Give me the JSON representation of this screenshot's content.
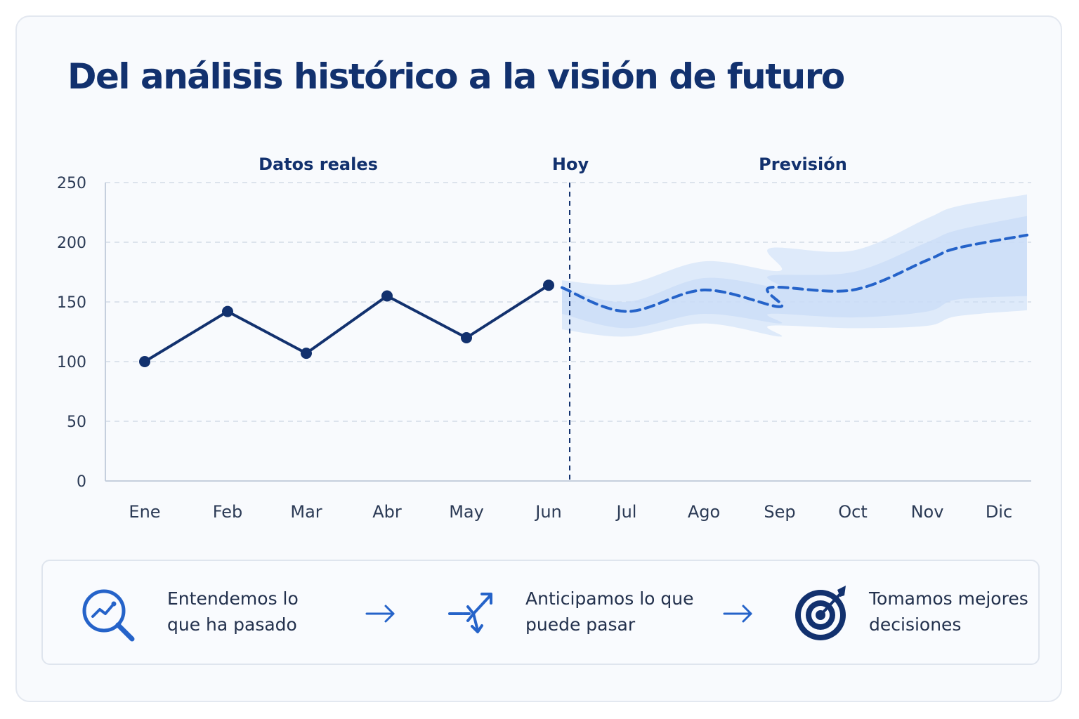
{
  "title": "Del análisis histórico a la visión de futuro",
  "chart_data": {
    "type": "line",
    "categories": [
      "Ene",
      "Feb",
      "Mar",
      "Abr",
      "May",
      "Jun",
      "Jul",
      "Ago",
      "Sep",
      "Oct",
      "Nov",
      "Dic"
    ],
    "ylim": [
      0,
      250
    ],
    "yticks": [
      "0",
      "50",
      "100",
      "150",
      "200",
      "250"
    ],
    "grid": true,
    "section_labels": {
      "actual": "Datos reales",
      "today": "Hoy",
      "forecast": "Previsión"
    },
    "series": [
      {
        "style": "solid-with-markers",
        "color": "#12316e",
        "x": [
          "Ene",
          "Feb",
          "Mar",
          "Abr",
          "May",
          "Jun"
        ],
        "values": [
          100,
          142,
          107,
          155,
          120,
          164
        ]
      },
      {
        "style": "dashed",
        "color": "#2563c9",
        "points": [
          [
            "Jun",
            162
          ],
          [
            "Jul",
            142
          ],
          [
            "Ago",
            160
          ],
          [
            "Sep",
            146
          ],
          [
            "Sep",
            162
          ],
          [
            "Oct",
            160
          ],
          [
            "Nov",
            185
          ],
          [
            "Dic",
            195
          ],
          [
            "Dic",
            206
          ]
        ]
      }
    ],
    "bands": [
      {
        "name_hidden": true,
        "color": "#c9dcf7",
        "upper": [
          [
            "Jun",
            168
          ],
          [
            "Jul",
            165
          ],
          [
            "Ago",
            184
          ],
          [
            "Sep",
            176
          ],
          [
            "Sep",
            195
          ],
          [
            "Oct",
            193
          ],
          [
            "Nov",
            220
          ],
          [
            "Dic",
            230
          ],
          [
            "Dic",
            240
          ]
        ],
        "lower": [
          [
            "Jun",
            127
          ],
          [
            "Jul",
            121
          ],
          [
            "Ago",
            132
          ],
          [
            "Sep",
            121
          ],
          [
            "Sep",
            130
          ],
          [
            "Oct",
            128
          ],
          [
            "Nov",
            130
          ],
          [
            "Dic",
            138
          ],
          [
            "Dic",
            143
          ]
        ]
      },
      {
        "name_hidden": true,
        "color": "#c9dcf7",
        "upper": [
          [
            "Jun",
            162
          ],
          [
            "Jul",
            150
          ],
          [
            "Ago",
            170
          ],
          [
            "Sep",
            162
          ],
          [
            "Sep",
            172
          ],
          [
            "Oct",
            175
          ],
          [
            "Nov",
            200
          ],
          [
            "Dic",
            210
          ],
          [
            "Dic",
            222
          ]
        ],
        "lower": [
          [
            "Jun",
            140
          ],
          [
            "Jul",
            128
          ],
          [
            "Ago",
            140
          ],
          [
            "Sep",
            132
          ],
          [
            "Sep",
            140
          ],
          [
            "Oct",
            137
          ],
          [
            "Nov",
            142
          ],
          [
            "Dic",
            152
          ],
          [
            "Dic",
            155
          ]
        ]
      }
    ]
  },
  "steps": [
    {
      "icon": "analytics-search-icon",
      "text": "Entendemos lo\nque ha pasado"
    },
    {
      "icon": "arrow-right-icon"
    },
    {
      "icon": "branching-arrows-icon",
      "text": "Anticipamos lo que\npuede pasar"
    },
    {
      "icon": "arrow-right-icon"
    },
    {
      "icon": "target-icon",
      "text": "Tomamos mejores\ndecisiones"
    }
  ],
  "colors": {
    "navy": "#12316e",
    "blue": "#2563c9",
    "band": "#c9dcf7",
    "grid": "#d3dbe6"
  }
}
